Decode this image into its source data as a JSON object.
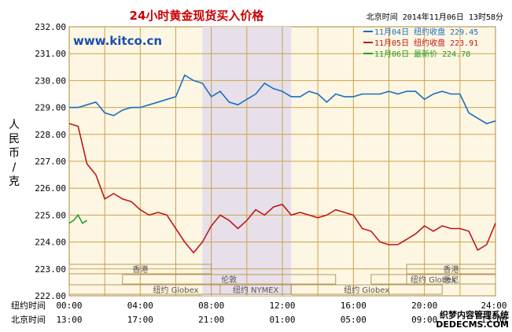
{
  "chart_data": {
    "type": "line",
    "title": "24小时黄金现货买入价格",
    "timestamp": "北京时间  2014年11月06日 13时58分",
    "site": "www.kitco.cn",
    "ylabel": "人民币/克",
    "ylim": [
      222.0,
      232.0
    ],
    "ytick_labels": [
      "232.00",
      "231.00",
      "230.00",
      "229.00",
      "228.00",
      "227.00",
      "226.00",
      "225.00",
      "224.00",
      "223.00",
      "222.00"
    ],
    "xlim": [
      0,
      24
    ],
    "x_ticks_ny": [
      "00:00",
      "04:00",
      "08:00",
      "12:00",
      "16:00",
      "20:00",
      "24:00"
    ],
    "x_ticks_bj": [
      "13:00",
      "17:00",
      "21:00",
      "01:00",
      "05:00",
      "09:00",
      "13:00"
    ],
    "row_labels": [
      "纽约时间",
      "北京时间"
    ],
    "highlight_range": [
      7.5,
      12.5
    ],
    "market_labels": [
      "香港",
      "伦敦",
      "纽约 Globex",
      "纽约 NYMEX",
      "纽约 Globex",
      "纽约 Globex",
      "悉尼",
      "香港"
    ],
    "legend": [
      {
        "label": "11月04日  纽约收盘 229.45",
        "color": "#1a6fc4"
      },
      {
        "label": "11月05日  纽约收盘 223.91",
        "color": "#c01818"
      },
      {
        "label": "11月06日    最新价 224.78",
        "color": "#22a022"
      }
    ],
    "series": [
      {
        "color": "#1a6fc4",
        "x": [
          0,
          0.5,
          1,
          1.5,
          2,
          2.5,
          3,
          3.5,
          4,
          4.5,
          5,
          5.5,
          6,
          6.5,
          7,
          7.5,
          8,
          8.5,
          9,
          9.5,
          10,
          10.5,
          11,
          11.5,
          12,
          12.5,
          13,
          13.5,
          14,
          14.5,
          15,
          15.5,
          16,
          16.5,
          17,
          17.5,
          18,
          18.5,
          19,
          19.5,
          20,
          20.5,
          21,
          21.5,
          22,
          22.5,
          23,
          23.5,
          24
        ],
        "y": [
          229.0,
          229.0,
          229.1,
          229.2,
          228.8,
          228.7,
          228.9,
          229.0,
          229.0,
          229.1,
          229.2,
          229.3,
          229.4,
          230.2,
          230.0,
          229.9,
          229.4,
          229.6,
          229.2,
          229.1,
          229.3,
          229.5,
          229.9,
          229.7,
          229.6,
          229.4,
          229.4,
          229.6,
          229.5,
          229.2,
          229.5,
          229.4,
          229.4,
          229.5,
          229.5,
          229.5,
          229.6,
          229.5,
          229.6,
          229.6,
          229.3,
          229.5,
          229.6,
          229.5,
          229.5,
          228.8,
          228.6,
          228.4,
          228.5
        ]
      },
      {
        "color": "#c01818",
        "x": [
          0,
          0.5,
          1,
          1.5,
          2,
          2.5,
          3,
          3.5,
          4,
          4.5,
          5,
          5.5,
          6,
          6.5,
          7,
          7.5,
          8,
          8.5,
          9,
          9.5,
          10,
          10.5,
          11,
          11.5,
          12,
          12.5,
          13,
          13.5,
          14,
          14.5,
          15,
          15.5,
          16,
          16.5,
          17,
          17.5,
          18,
          18.5,
          19,
          19.5,
          20,
          20.5,
          21,
          21.5,
          22,
          22.5,
          23,
          23.5,
          24
        ],
        "y": [
          228.4,
          228.3,
          226.9,
          226.5,
          225.6,
          225.8,
          225.6,
          225.5,
          225.2,
          225.0,
          225.1,
          225.0,
          224.5,
          224.0,
          223.6,
          224.0,
          224.6,
          225.0,
          224.8,
          224.5,
          224.8,
          225.2,
          225.0,
          225.3,
          225.4,
          225.0,
          225.1,
          225.0,
          224.9,
          225.0,
          225.2,
          225.1,
          225.0,
          224.5,
          224.4,
          224.0,
          223.9,
          223.9,
          224.1,
          224.3,
          224.6,
          224.4,
          224.6,
          224.5,
          224.5,
          224.4,
          223.7,
          223.9,
          224.7
        ]
      },
      {
        "color": "#22a022",
        "x": [
          0,
          0.25,
          0.5,
          0.75,
          1
        ],
        "y": [
          224.7,
          224.8,
          225.0,
          224.7,
          224.8
        ]
      }
    ]
  }
}
